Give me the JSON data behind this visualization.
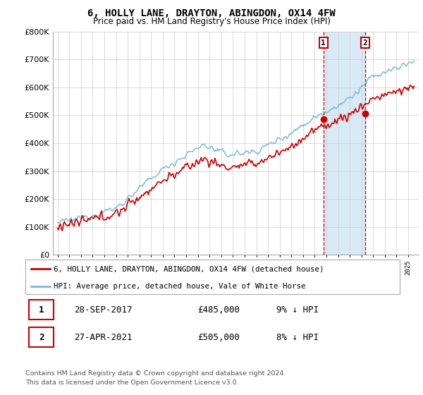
{
  "title": "6, HOLLY LANE, DRAYTON, ABINGDON, OX14 4FW",
  "subtitle": "Price paid vs. HM Land Registry's House Price Index (HPI)",
  "legend_line1": "6, HOLLY LANE, DRAYTON, ABINGDON, OX14 4FW (detached house)",
  "legend_line2": "HPI: Average price, detached house, Vale of White Horse",
  "footer1": "Contains HM Land Registry data © Crown copyright and database right 2024.",
  "footer2": "This data is licensed under the Open Government Licence v3.0.",
  "transaction1_label": "1",
  "transaction1_date": "28-SEP-2017",
  "transaction1_price": "£485,000",
  "transaction1_hpi": "9% ↓ HPI",
  "transaction2_label": "2",
  "transaction2_date": "27-APR-2021",
  "transaction2_price": "£505,000",
  "transaction2_hpi": "8% ↓ HPI",
  "ylim": [
    0,
    800000
  ],
  "yticks": [
    0,
    100000,
    200000,
    300000,
    400000,
    500000,
    600000,
    700000,
    800000
  ],
  "hpi_color": "#7ab8d9",
  "price_color": "#cc0000",
  "vline_color": "#cc0000",
  "highlight_color": "#d8eaf5",
  "background_color": "#ffffff",
  "grid_color": "#cccccc",
  "t1_x": 2017.75,
  "t1_y": 485000,
  "t2_x": 2021.33,
  "t2_y": 505000,
  "years_start": 1995.0,
  "years_end": 2025.5,
  "xlim_left": 1994.6,
  "xlim_right": 2025.9
}
